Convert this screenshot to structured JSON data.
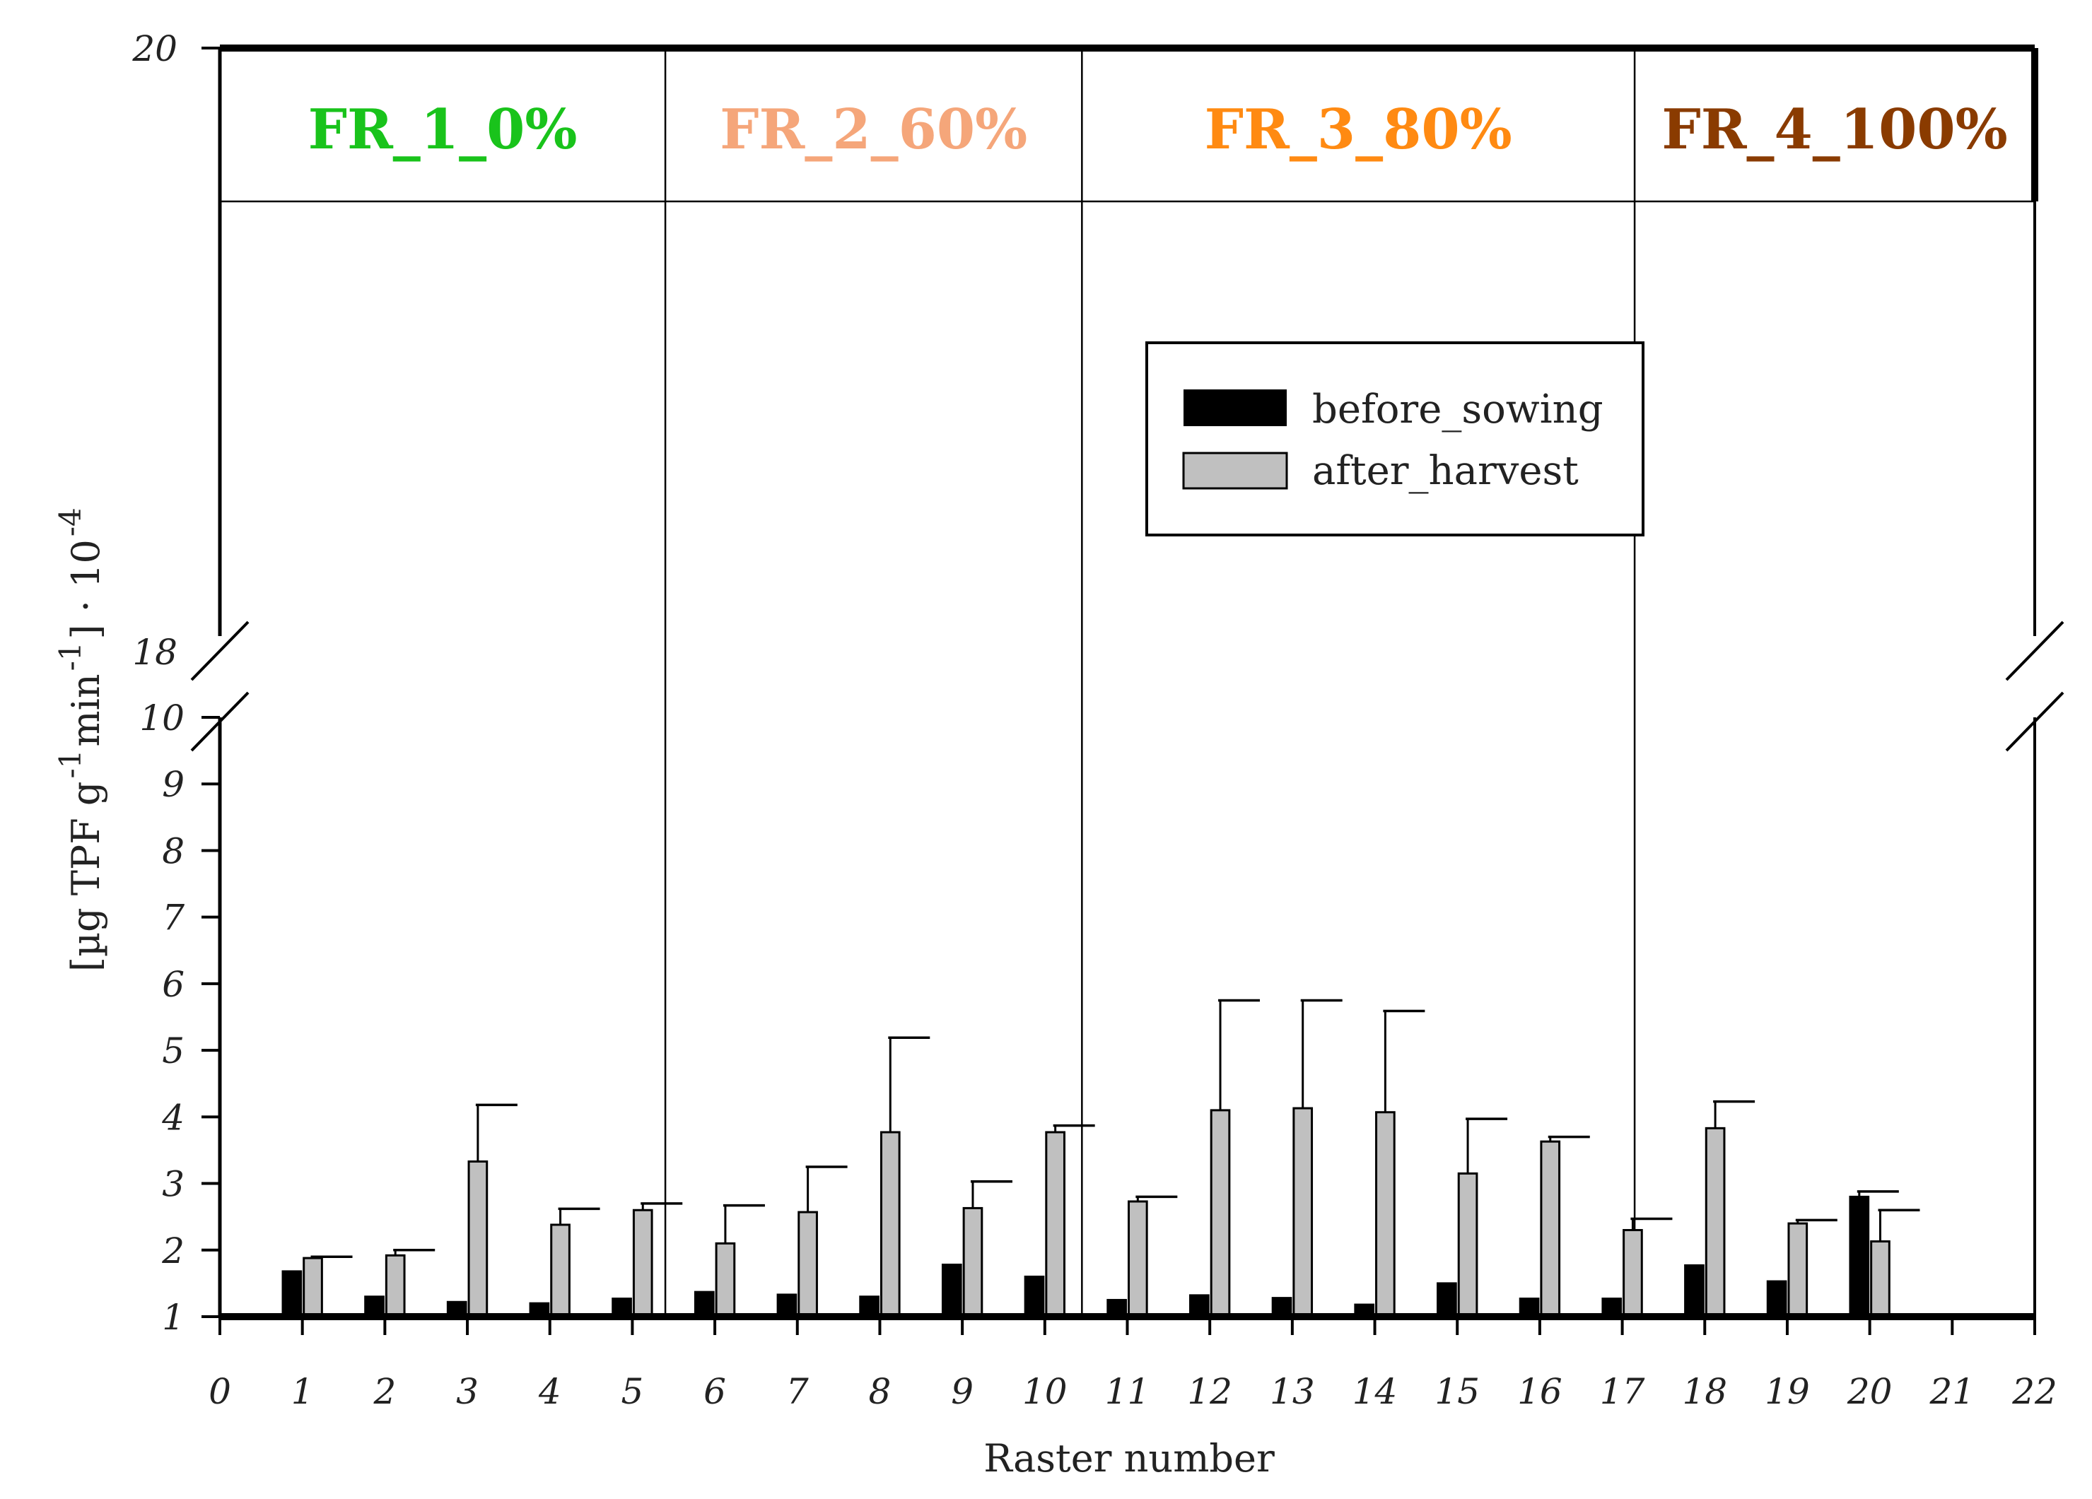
{
  "chart_data": {
    "type": "bar",
    "title": "",
    "xlabel": "Raster number",
    "ylabel": {
      "main": "[µg TPF g",
      "exp1": "-1",
      "mid": " min",
      "exp2": "-1",
      "end": " ] · 10",
      "exp3": "-4"
    },
    "x_ticks": [
      "0",
      "1",
      "2",
      "3",
      "4",
      "5",
      "6",
      "7",
      "8",
      "9",
      "10",
      "11",
      "12",
      "13",
      "14",
      "15",
      "16",
      "17",
      "18",
      "19",
      "20",
      "21",
      "22"
    ],
    "y_ticks_lower": [
      "1",
      "2",
      "3",
      "4",
      "5",
      "6",
      "7",
      "8",
      "9",
      "10"
    ],
    "y_ticks_upper": [
      "18",
      "20"
    ],
    "ylim": [
      1,
      20
    ],
    "y_break": [
      10,
      18
    ],
    "categories": [
      1,
      2,
      3,
      4,
      5,
      6,
      7,
      8,
      9,
      10,
      11,
      12,
      13,
      14,
      15,
      16,
      17,
      18,
      19,
      20
    ],
    "series": [
      {
        "name": "before_sowing",
        "color": "#000000",
        "values": [
          1.68,
          1.3,
          1.22,
          1.2,
          1.27,
          1.37,
          1.33,
          1.3,
          1.78,
          1.6,
          1.25,
          1.32,
          1.28,
          1.18,
          1.5,
          1.27,
          1.27,
          1.77,
          1.53,
          2.8
        ],
        "errors": [
          0,
          0,
          0,
          0,
          0,
          0,
          0,
          0,
          0,
          0,
          0,
          0,
          0,
          0,
          0,
          0,
          0,
          0,
          0,
          0.08
        ]
      },
      {
        "name": "after_harvest",
        "color": "#c0c0c0",
        "values": [
          1.88,
          1.92,
          3.33,
          2.38,
          2.6,
          2.1,
          2.57,
          3.77,
          2.63,
          3.77,
          2.73,
          4.1,
          4.13,
          4.07,
          3.15,
          3.63,
          2.3,
          3.83,
          2.4,
          2.13
        ],
        "errors": [
          0.02,
          0.08,
          0.85,
          0.24,
          0.1,
          0.57,
          0.68,
          1.42,
          0.4,
          0.1,
          0.07,
          1.65,
          1.62,
          1.52,
          0.82,
          0.07,
          0.17,
          0.4,
          0.05,
          0.47
        ]
      }
    ],
    "regions": [
      {
        "label": "FR_1_0%",
        "color": "#19c31b",
        "from": 0,
        "to": 5.4
      },
      {
        "label": "FR_2_60%",
        "color": "#f5a67a",
        "from": 5.4,
        "to": 10.45
      },
      {
        "label": "FR_3_80%",
        "color": "#ff8a12",
        "from": 10.45,
        "to": 17.15
      },
      {
        "label": "FR_4_100%",
        "color": "#8a3b00",
        "from": 17.15,
        "to": 22
      }
    ],
    "legend_position": "upper-right"
  }
}
